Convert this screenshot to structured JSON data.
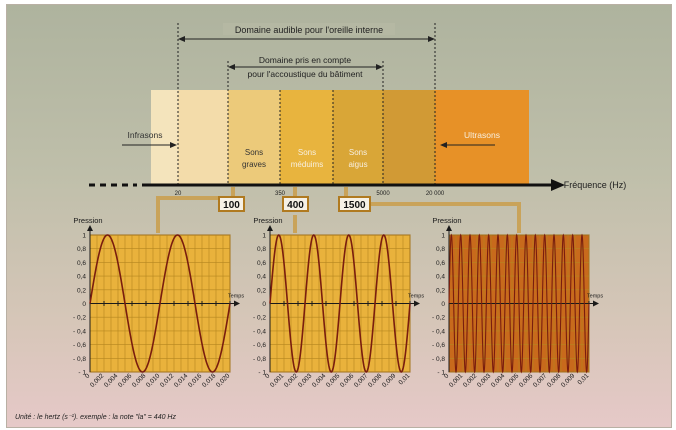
{
  "header": {
    "audible_range": "Domaine audible pour l'oreille interne",
    "building_range_line1": "Domaine pris en compte",
    "building_range_line2": "pour l'accoustique du bâtiment"
  },
  "spectrum": {
    "zones": [
      {
        "key": "infra",
        "label": "Infrasons",
        "color": "#f4e4bc"
      },
      {
        "key": "graves_a",
        "label": "",
        "color": "#f3dcaa"
      },
      {
        "key": "graves",
        "label": "Sons\ngraves",
        "color": "#ecca7a"
      },
      {
        "key": "mediums",
        "label": "Sons\nméduims",
        "color": "#e8b43e"
      },
      {
        "key": "aigus",
        "label": "Sons\naigus",
        "color": "#d9a637"
      },
      {
        "key": "aigus_b",
        "label": "",
        "color": "#d19a35"
      },
      {
        "key": "ultra",
        "label": "Ultrasons",
        "color": "#e79127"
      }
    ],
    "axis_label": "Fréquence (Hz)",
    "ticks": [
      "20",
      "350",
      "5000",
      "20 000"
    ],
    "boxes": [
      "100",
      "400",
      "1500"
    ]
  },
  "charts": [
    {
      "ylabel": "Pression",
      "xlabel": "Temps",
      "y_ticks": [
        "1",
        "0,8",
        "0,6",
        "0,4",
        "0,2",
        "0",
        "- 0,2",
        "- 0,4",
        "- 0,6",
        "- 0,8",
        "- 1"
      ],
      "x_ticks": [
        "0",
        "0,002",
        "0,004",
        "0,006",
        "0,008",
        "0,010",
        "0,012",
        "0,014",
        "0,016",
        "0,018",
        "0,020"
      ],
      "bg": "#e9b23c"
    },
    {
      "ylabel": "Pression",
      "xlabel": "Temps",
      "y_ticks": [
        "1",
        "0,8",
        "0,6",
        "0,4",
        "0,2",
        "0",
        "- 0,2",
        "- 0,4",
        "- 0,6",
        "- 0,8",
        "- 1"
      ],
      "x_ticks": [
        "0",
        "0,001",
        "0,002",
        "0,003",
        "0,004",
        "0,005",
        "0,006",
        "0,007",
        "0,008",
        "0,009",
        "0,01"
      ],
      "bg": "#e9b23c"
    },
    {
      "ylabel": "Pression",
      "xlabel": "Temps",
      "y_ticks": [
        "1",
        "0,8",
        "0,6",
        "0,4",
        "0,2",
        "0",
        "- 0,2",
        "- 0,4",
        "- 0,6",
        "- 0,8",
        "- 1"
      ],
      "x_ticks": [
        "0",
        "0,001",
        "0,002",
        "0,003",
        "0,004",
        "0,005",
        "0,006",
        "0,007",
        "0,008",
        "0,009",
        "0,01"
      ],
      "bg": "#c86a1c"
    }
  ],
  "chart_data": [
    {
      "type": "line",
      "ylabel": "Pression",
      "xlabel": "Temps",
      "frequency_hz": 100,
      "x_range": [
        0,
        0.02
      ],
      "ylim": [
        -1,
        1
      ],
      "series": [
        {
          "function": "sin",
          "amplitude": 1,
          "cycles": 2
        }
      ]
    },
    {
      "type": "line",
      "ylabel": "Pression",
      "xlabel": "Temps",
      "frequency_hz": 400,
      "x_range": [
        0,
        0.01
      ],
      "ylim": [
        -1,
        1
      ],
      "series": [
        {
          "function": "sin",
          "amplitude": 1,
          "cycles": 4
        }
      ]
    },
    {
      "type": "line",
      "ylabel": "Pression",
      "xlabel": "Temps",
      "frequency_hz": 1500,
      "x_range": [
        0,
        0.01
      ],
      "ylim": [
        -1,
        1
      ],
      "series": [
        {
          "function": "sin",
          "amplitude": 1,
          "cycles": 15
        }
      ]
    }
  ],
  "footer": {
    "note": "Unité : le hertz (s⁻¹). exemple : la note \"la\" = 440 Hz"
  },
  "colors": {
    "line": "#7a1d0e",
    "connector": "#c9a35a",
    "dark": "#1a1a1a"
  }
}
